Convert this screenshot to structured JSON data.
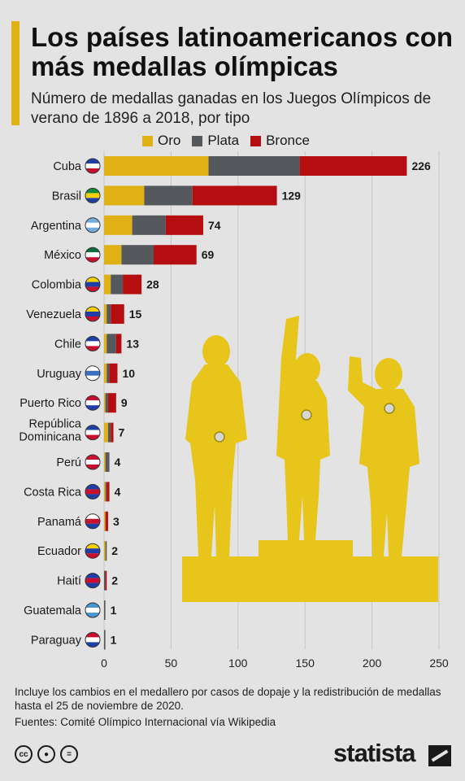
{
  "title": "Los países latinoamericanos con más medallas olímpicas",
  "subtitle": "Número de medallas ganadas en los Juegos Olímpicos de verano de 1896 a 2018, por tipo",
  "footnote": "Incluye los cambios en el medallero por casos de dopaje y la redistribución de medallas hasta el 25 de noviembre de 2020.",
  "sources": "Fuentes: Comité Olímpico Internacional vía Wikipedia",
  "brand": "statista",
  "colors": {
    "oro": "#e0b114",
    "plata": "#55585d",
    "bronce": "#b50d10",
    "silhouette": "#e7c51a"
  },
  "chart_data": {
    "type": "bar",
    "orientation": "horizontal",
    "stacked": true,
    "categories": [
      "Cuba",
      "Brasil",
      "Argentina",
      "México",
      "Colombia",
      "Venezuela",
      "Chile",
      "Uruguay",
      "Puerto Rico",
      "República Dominicana",
      "Perú",
      "Costa Rica",
      "Panamá",
      "Ecuador",
      "Haití",
      "Guatemala",
      "Paraguay"
    ],
    "series": [
      {
        "name": "Oro",
        "color": "#e0b114",
        "values": [
          78,
          30,
          21,
          13,
          5,
          2,
          2,
          2,
          1,
          3,
          1,
          1,
          1,
          1,
          0,
          0,
          0
        ]
      },
      {
        "name": "Plata",
        "color": "#55585d",
        "values": [
          68,
          36,
          25,
          24,
          9,
          3,
          7,
          2,
          2,
          2,
          3,
          1,
          0,
          1,
          1,
          1,
          1
        ]
      },
      {
        "name": "Bronce",
        "color": "#b50d10",
        "values": [
          80,
          63,
          28,
          32,
          14,
          10,
          4,
          6,
          6,
          2,
          0,
          2,
          2,
          0,
          1,
          0,
          0
        ]
      }
    ],
    "totals": [
      "226",
      "129",
      "74",
      "69",
      "28",
      "15",
      "13",
      "10",
      "9",
      "7",
      "4",
      "4",
      "3",
      "2",
      "2",
      "1",
      "1"
    ],
    "xticks": [
      "0",
      "50",
      "100",
      "150",
      "200",
      "250"
    ],
    "xlim": [
      0,
      250
    ],
    "grid": true,
    "legend": "top"
  }
}
